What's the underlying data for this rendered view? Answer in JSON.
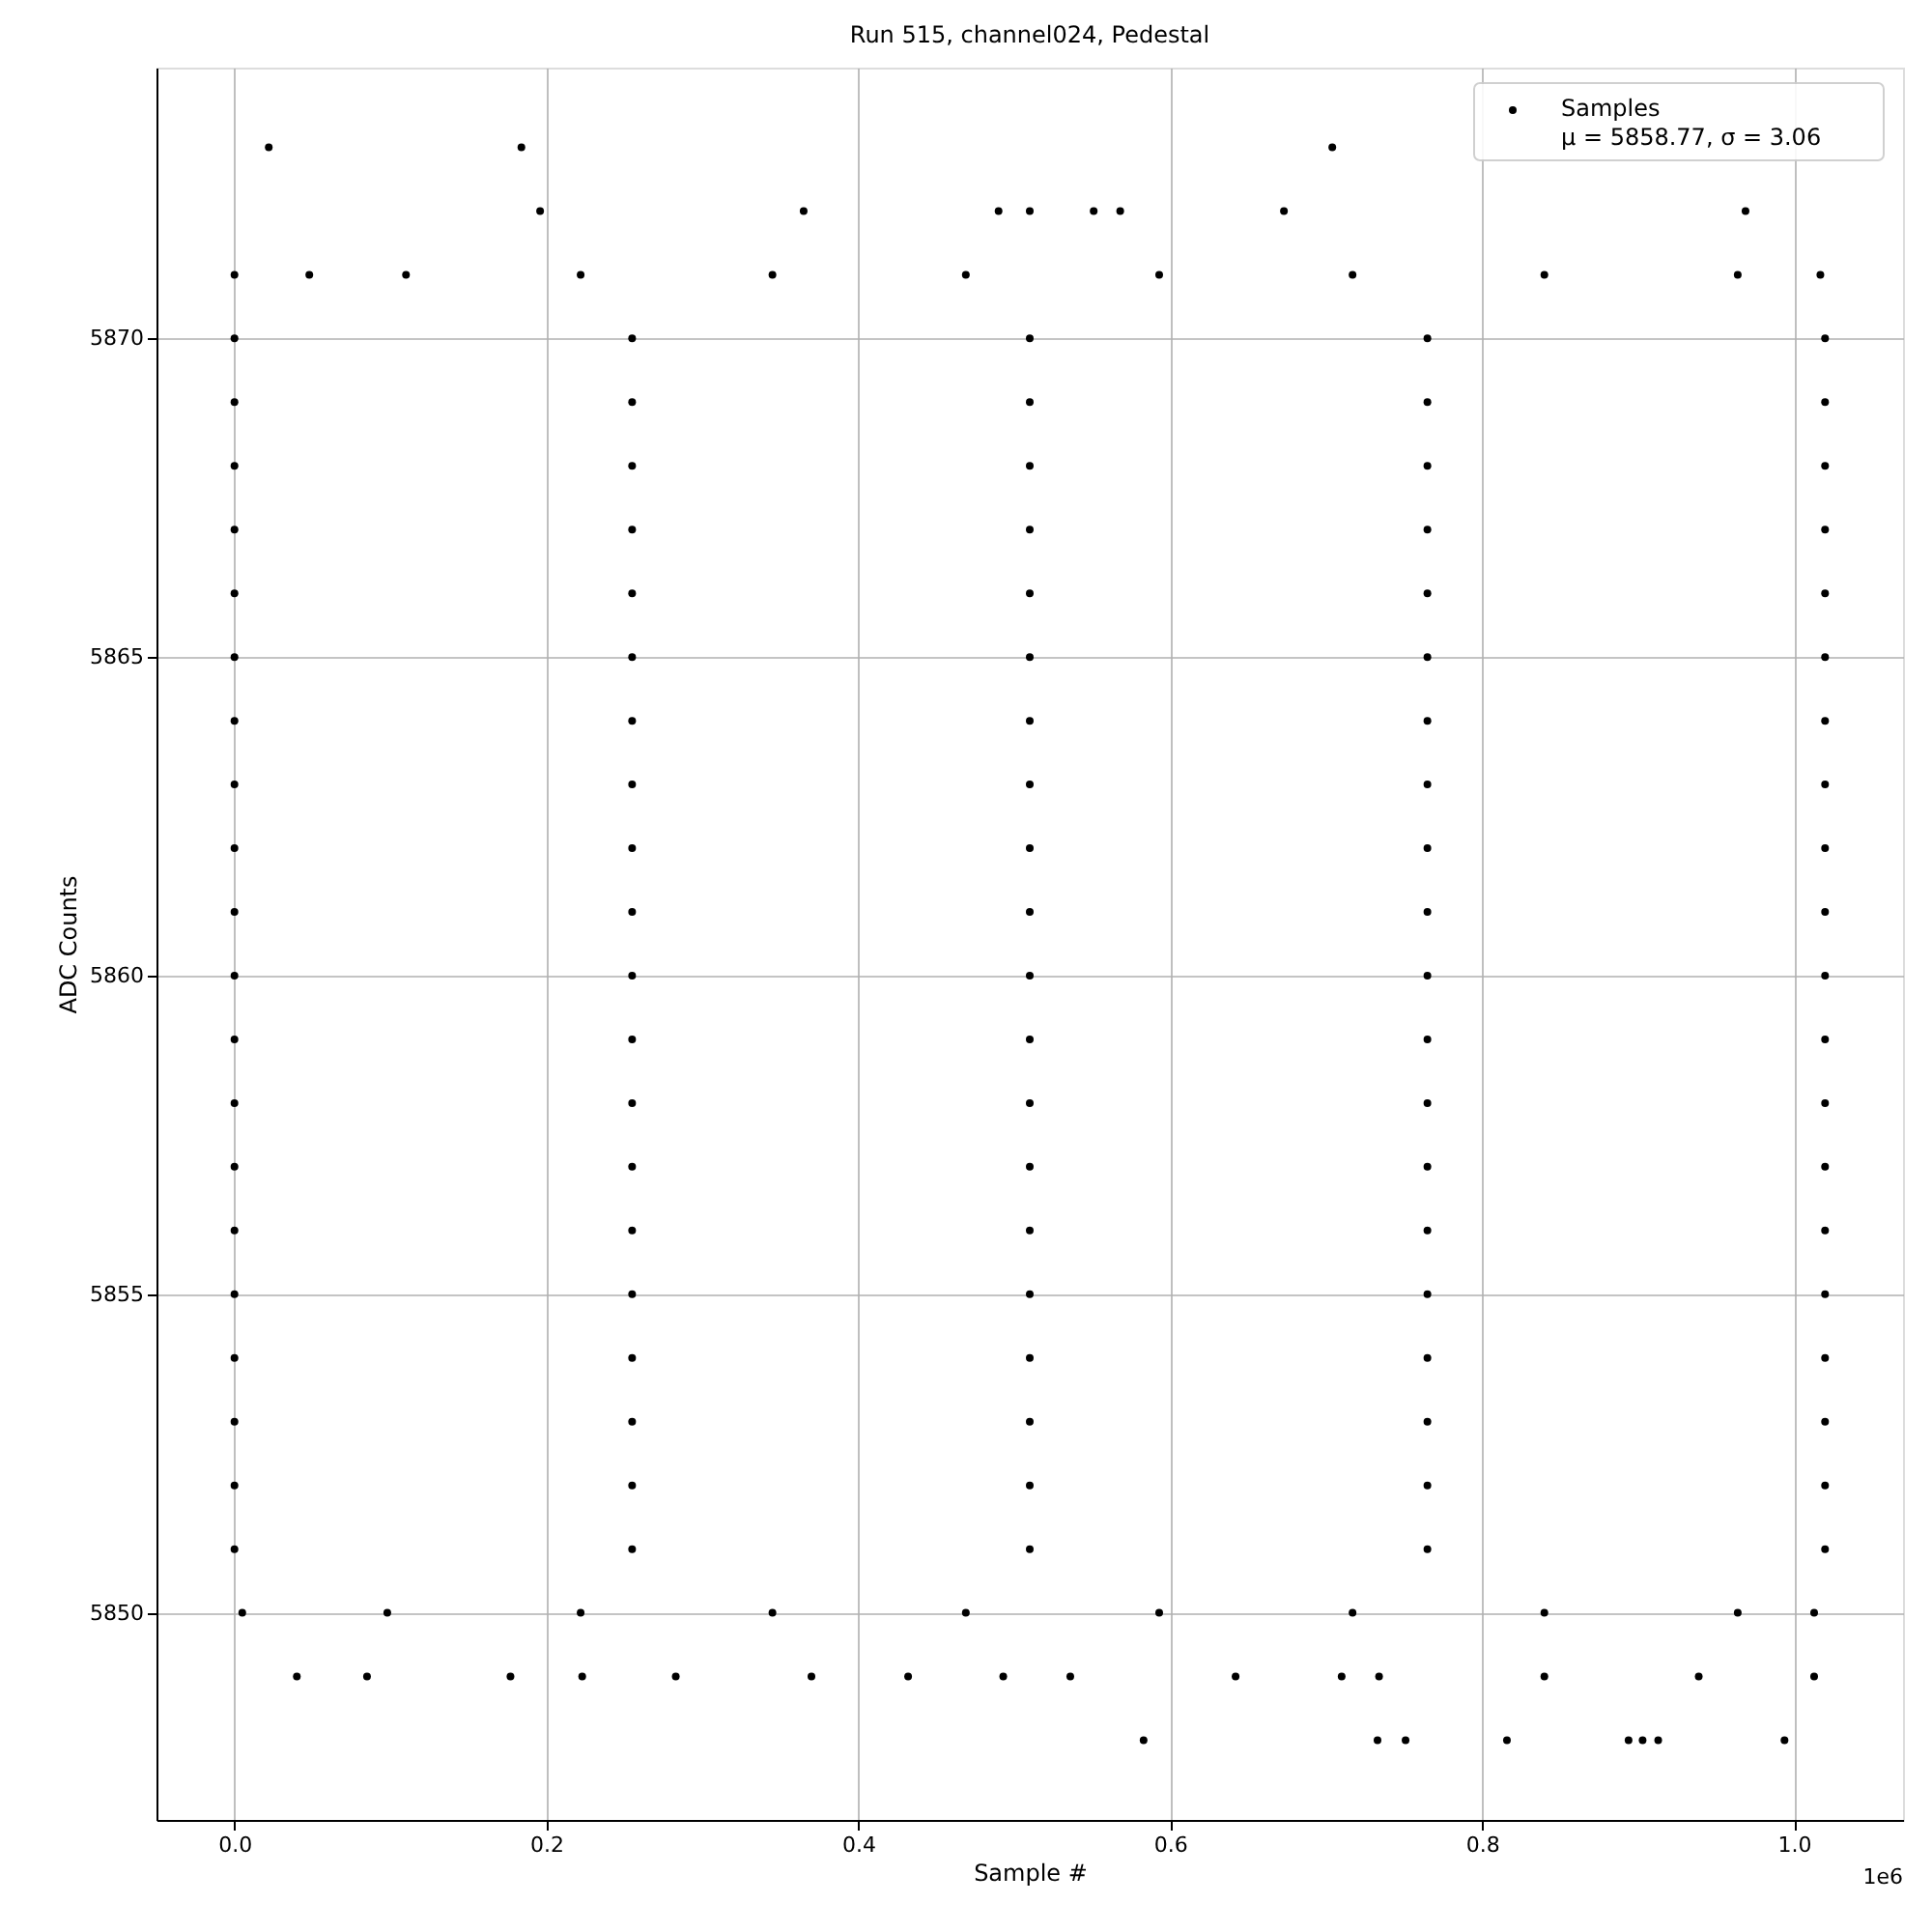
{
  "chart_data": {
    "type": "scatter",
    "title": "Run 515, channel024, Pedestal",
    "xlabel": "Sample #",
    "ylabel": "ADC Counts",
    "xlim": [
      -0.05,
      1.07
    ],
    "ylim": [
      5846.75,
      5874.25
    ],
    "xticks": [
      {
        "value": 0,
        "label": "0.0"
      },
      0.2,
      0.4,
      0.6,
      0.8,
      {
        "value": 1,
        "label": "1.0"
      }
    ],
    "yticks": [
      5850,
      5855,
      5860,
      5865,
      5870
    ],
    "grid": true,
    "legend": "top right",
    "marker": "circle",
    "annotations": [
      "1e6"
    ],
    "series": [
      {
        "name": "Samples\nμ = 5858.77, σ = 3.06",
        "color": "#000000",
        "x": [
          0.022,
          0.184,
          0.704,
          0.196,
          0.365,
          0.49,
          0.51,
          0.551,
          0.568,
          0.673,
          0.969,
          0,
          0.048,
          0.11,
          0.222,
          0.345,
          0.469,
          0.593,
          0.717,
          0.84,
          0.964,
          1.017,
          0,
          0.255,
          0.51,
          0.765,
          1.02,
          0,
          0.255,
          0.51,
          0.765,
          1.02,
          0,
          0.255,
          0.51,
          0.765,
          1.02,
          0,
          0.255,
          0.51,
          0.765,
          1.02,
          0,
          0.255,
          0.51,
          0.765,
          1.02,
          0,
          0.255,
          0.51,
          0.765,
          1.02,
          0,
          0.255,
          0.51,
          0.765,
          1.02,
          0,
          0.255,
          0.51,
          0.765,
          1.02,
          0,
          0.255,
          0.51,
          0.765,
          1.02,
          0,
          0.255,
          0.51,
          0.765,
          1.02,
          0,
          0.255,
          0.51,
          0.765,
          1.02,
          0,
          0.255,
          0.51,
          0.765,
          1.02,
          0,
          0.255,
          0.51,
          0.765,
          1.02,
          0,
          0.255,
          0.51,
          0.765,
          1.02,
          0,
          0.255,
          0.51,
          0.765,
          1.02,
          0,
          0.255,
          0.51,
          0.765,
          1.02,
          0,
          0.255,
          0.51,
          0.765,
          1.02,
          0,
          0.255,
          0.51,
          0.765,
          1.02,
          0,
          0.255,
          0.51,
          0.765,
          1.02,
          0,
          0.255,
          0.51,
          0.765,
          1.02,
          0.005,
          0.098,
          0.222,
          0.345,
          0.469,
          0.593,
          0.717,
          0.84,
          0.964,
          1.013,
          0.04,
          0.085,
          0.177,
          0.223,
          0.283,
          0.37,
          0.432,
          0.493,
          0.536,
          0.642,
          0.71,
          0.734,
          0.84,
          0.939,
          1.013,
          0.583,
          0.733,
          0.751,
          0.816,
          0.894,
          0.903,
          0.913,
          0.994
        ],
        "values": [
          5873,
          5873,
          5873,
          5872,
          5872,
          5872,
          5872,
          5872,
          5872,
          5872,
          5872,
          5871,
          5871,
          5871,
          5871,
          5871,
          5871,
          5871,
          5871,
          5871,
          5871,
          5871,
          5870,
          5870,
          5870,
          5870,
          5870,
          5869,
          5869,
          5869,
          5869,
          5869,
          5868,
          5868,
          5868,
          5868,
          5868,
          5867,
          5867,
          5867,
          5867,
          5867,
          5866,
          5866,
          5866,
          5866,
          5866,
          5865,
          5865,
          5865,
          5865,
          5865,
          5864,
          5864,
          5864,
          5864,
          5864,
          5863,
          5863,
          5863,
          5863,
          5863,
          5862,
          5862,
          5862,
          5862,
          5862,
          5861,
          5861,
          5861,
          5861,
          5861,
          5860,
          5860,
          5860,
          5860,
          5860,
          5859,
          5859,
          5859,
          5859,
          5859,
          5858,
          5858,
          5858,
          5858,
          5858,
          5857,
          5857,
          5857,
          5857,
          5857,
          5856,
          5856,
          5856,
          5856,
          5856,
          5855,
          5855,
          5855,
          5855,
          5855,
          5854,
          5854,
          5854,
          5854,
          5854,
          5853,
          5853,
          5853,
          5853,
          5853,
          5852,
          5852,
          5852,
          5852,
          5852,
          5851,
          5851,
          5851,
          5851,
          5851,
          5850,
          5850,
          5850,
          5850,
          5850,
          5850,
          5850,
          5850,
          5850,
          5850,
          5849,
          5849,
          5849,
          5849,
          5849,
          5849,
          5849,
          5849,
          5849,
          5849,
          5849,
          5849,
          5849,
          5849,
          5849,
          5848,
          5848,
          5848,
          5848,
          5848,
          5848,
          5848,
          5848
        ]
      }
    ]
  }
}
